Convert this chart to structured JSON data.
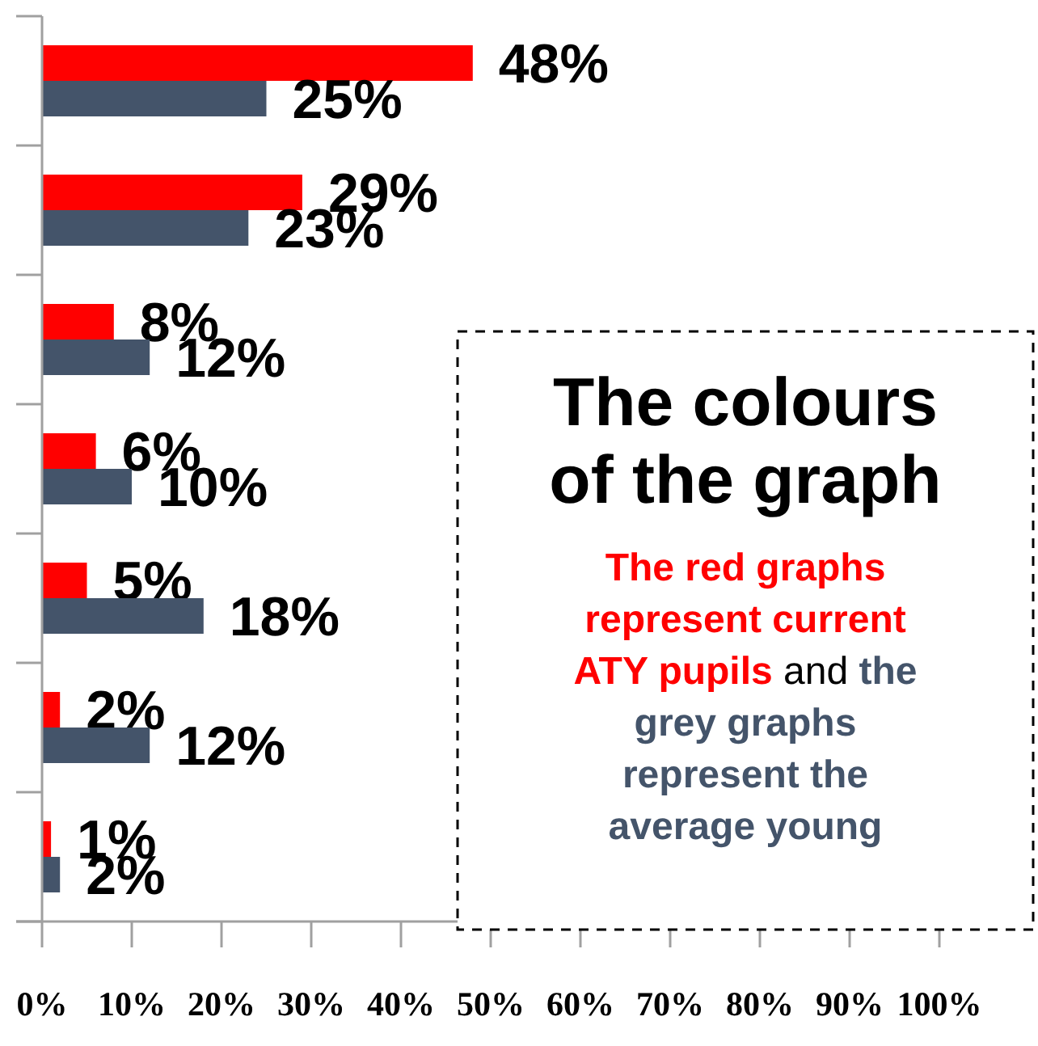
{
  "chart_data": {
    "type": "bar",
    "orientation": "horizontal",
    "categories": [
      null,
      null,
      null,
      null,
      null,
      null,
      null
    ],
    "series": [
      {
        "color": "#ff0000",
        "values": [
          48,
          29,
          8,
          6,
          5,
          2,
          1
        ],
        "value_labels": [
          "48%",
          "29%",
          "8%",
          "6%",
          "5%",
          "2%",
          "1%"
        ]
      },
      {
        "color": "#44546a",
        "values": [
          25,
          23,
          12,
          10,
          18,
          12,
          2
        ],
        "value_labels": [
          "25%",
          "23%",
          "12%",
          "10%",
          "18%",
          "12%",
          "2%"
        ]
      }
    ],
    "xlim": [
      0,
      100
    ],
    "xticks": [
      {
        "value": 0,
        "label": "0%"
      },
      {
        "value": 10,
        "label": "10%"
      },
      {
        "value": 20,
        "label": "20%"
      },
      {
        "value": 30,
        "label": "30%"
      },
      {
        "value": 40,
        "label": "40%"
      },
      {
        "value": 50,
        "label": "50%"
      },
      {
        "value": 60,
        "label": "60%"
      },
      {
        "value": 70,
        "label": "70%"
      },
      {
        "value": 80,
        "label": "80%"
      },
      {
        "value": 90,
        "label": "90%"
      },
      {
        "value": 100,
        "label": "100%"
      }
    ],
    "grid": false,
    "annotations": [
      "The colours of the graph",
      "The red graphs represent current ATY pupils",
      "and",
      "the grey graphs represent the average young"
    ]
  }
}
